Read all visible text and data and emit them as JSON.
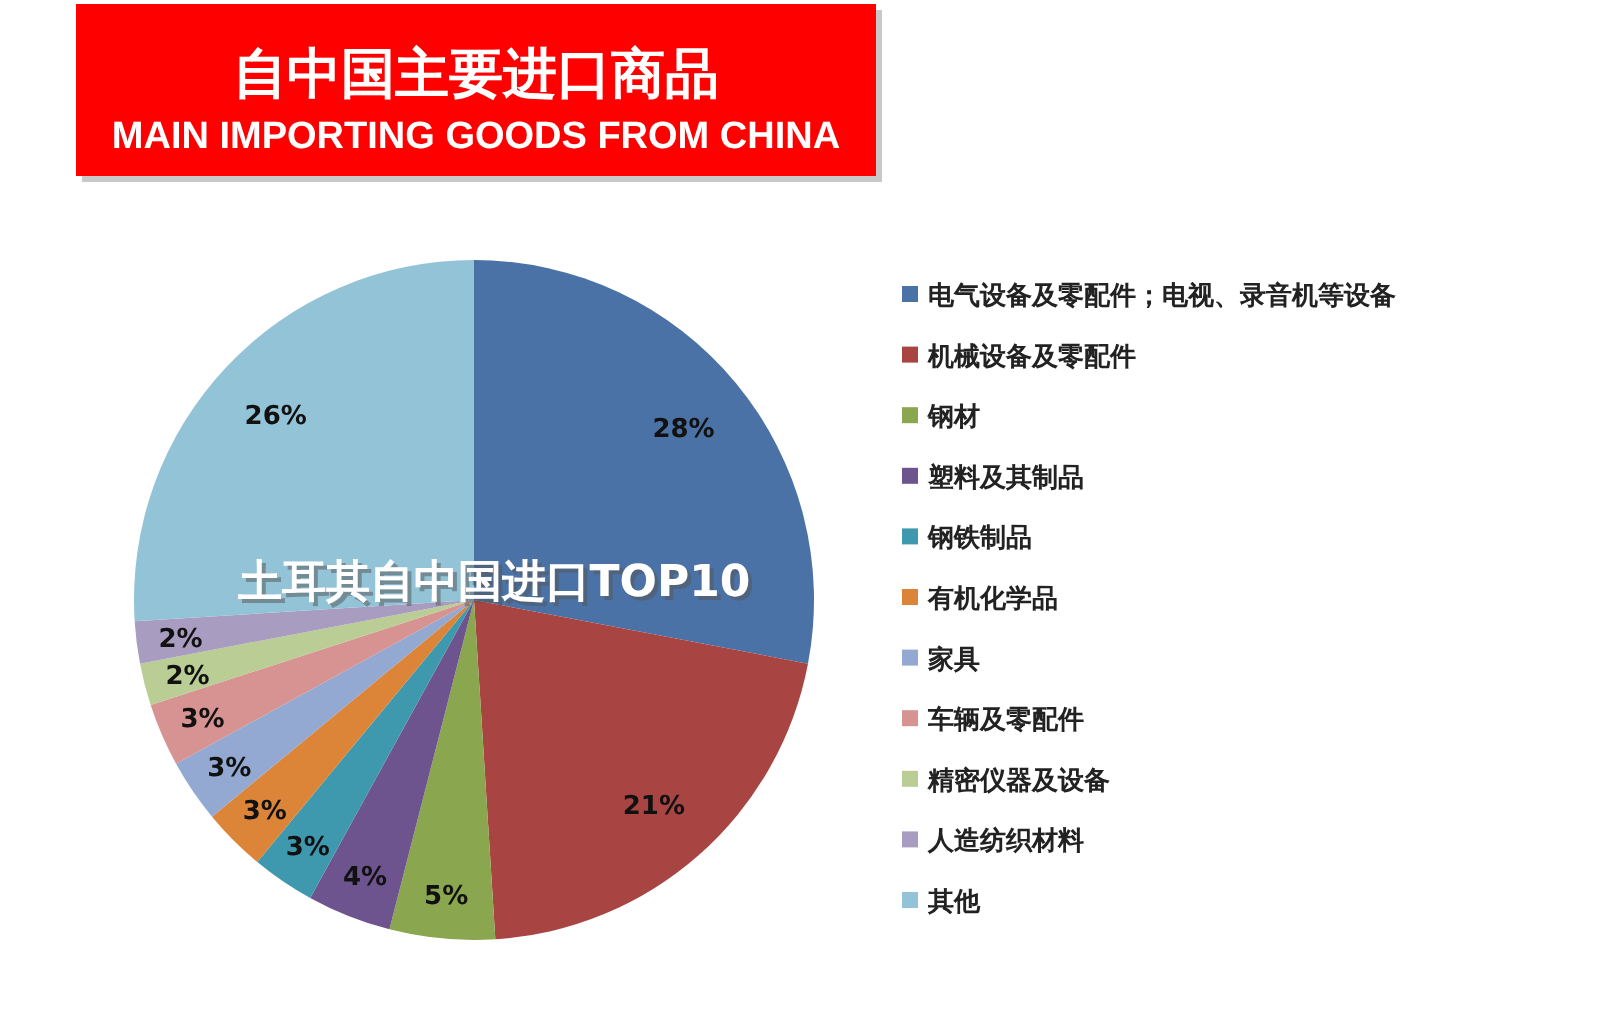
{
  "chart_data": {
    "type": "pie",
    "title": "自中国主要进口商品",
    "subtitle": "MAIN IMPORTING GOODS FROM CHINA",
    "annotations": [
      "土耳其自中国进口TOP10"
    ],
    "categories": [
      "电气设备及零配件；电视、录音机等设备",
      "机械设备及零配件",
      "钢材",
      "塑料及其制品",
      "钢铁制品",
      "有机化学品",
      "家具",
      "车辆及零配件",
      "精密仪器及设备",
      "人造纺织材料",
      "其他"
    ],
    "values": [
      28,
      21,
      5,
      4,
      3,
      3,
      3,
      3,
      2,
      2,
      26
    ],
    "value_labels": [
      "28%",
      "21%",
      "5%",
      "4%",
      "3%",
      "3%",
      "3%",
      "3%",
      "2%",
      "2%",
      "26%"
    ],
    "colors": [
      "#4a72a6",
      "#a84542",
      "#8aa64e",
      "#6e548f",
      "#3f99ae",
      "#dc8538",
      "#93a9d2",
      "#d69391",
      "#b9cd94",
      "#a99cc1",
      "#93c3d6"
    ],
    "legend": "right"
  }
}
